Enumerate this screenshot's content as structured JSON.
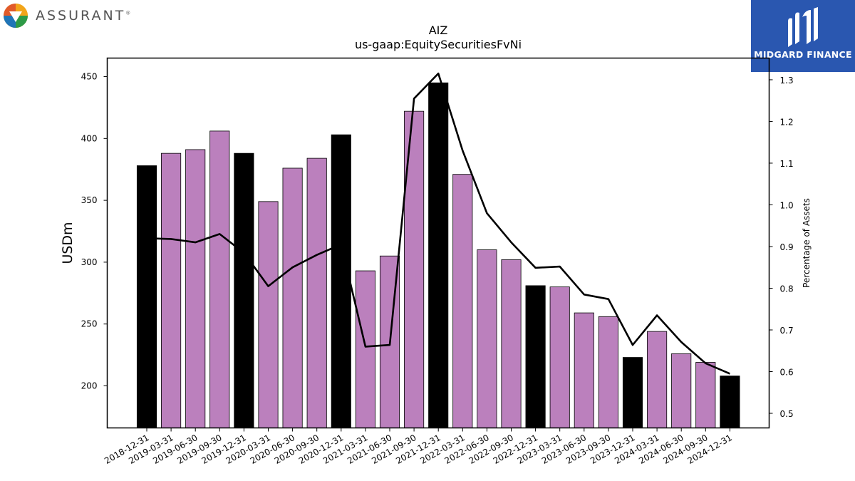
{
  "logos": {
    "left_brand": "ASSURANT",
    "left_mark": "®",
    "right_brand": "MIDGARD FINANCE"
  },
  "chart_data": {
    "type": "bar",
    "title": "AIZ",
    "subtitle": "us-gaap:EquitySecuritiesFvNi",
    "ylabel": "USDm",
    "y2label": "Percentage of Assets",
    "ylim": [
      166,
      465
    ],
    "y2lim": [
      0.465,
      1.352
    ],
    "yticks": [
      200,
      250,
      300,
      350,
      400,
      450
    ],
    "y2ticks": [
      0.5,
      0.6,
      0.7,
      0.8,
      0.9,
      1.0,
      1.1,
      1.2,
      1.3
    ],
    "categories": [
      "2018-12-31",
      "2019-03-31",
      "2019-06-30",
      "2019-09-30",
      "2019-12-31",
      "2020-03-31",
      "2020-06-30",
      "2020-09-30",
      "2020-12-31",
      "2021-03-31",
      "2021-06-30",
      "2021-09-30",
      "2021-12-31",
      "2022-03-31",
      "2022-06-30",
      "2022-09-30",
      "2022-12-31",
      "2023-03-31",
      "2023-06-30",
      "2023-09-30",
      "2023-12-31",
      "2024-03-31",
      "2024-06-30",
      "2024-09-30",
      "2024-12-31"
    ],
    "values": [
      378,
      388,
      391,
      406,
      388,
      349,
      376,
      384,
      403,
      293,
      305,
      422,
      445,
      371,
      310,
      302,
      281,
      280,
      259,
      256,
      223,
      244,
      226,
      219,
      208
    ],
    "bar_colors": [
      "#000000",
      "#bb80bd",
      "#bb80bd",
      "#bb80bd",
      "#000000",
      "#bb80bd",
      "#bb80bd",
      "#bb80bd",
      "#000000",
      "#bb80bd",
      "#bb80bd",
      "#bb80bd",
      "#000000",
      "#bb80bd",
      "#bb80bd",
      "#bb80bd",
      "#000000",
      "#bb80bd",
      "#bb80bd",
      "#bb80bd",
      "#000000",
      "#bb80bd",
      "#bb80bd",
      "#bb80bd",
      "#000000"
    ],
    "line_series": {
      "axis": "right",
      "values": [
        0.92,
        0.918,
        0.91,
        0.93,
        0.885,
        0.805,
        0.85,
        0.88,
        0.905,
        0.66,
        0.664,
        1.255,
        1.315,
        1.13,
        0.98,
        0.91,
        0.849,
        0.852,
        0.785,
        0.774,
        0.664,
        0.735,
        0.671,
        0.62,
        0.595
      ]
    },
    "colors": {
      "accent_bar": "#bb80bd",
      "year_end_bar": "#000000",
      "line": "#000000"
    },
    "grid": false
  }
}
